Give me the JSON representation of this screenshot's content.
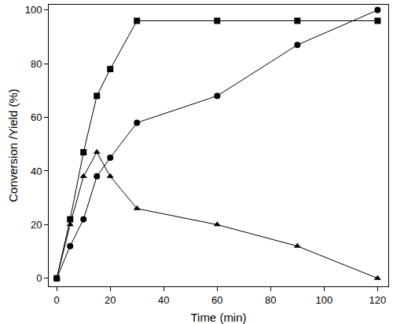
{
  "chart_data": {
    "type": "line",
    "x_label": "Time (min)",
    "y_label": "Conversion /Yield (%)",
    "x": [
      0,
      5,
      10,
      15,
      20,
      30,
      60,
      90,
      120
    ],
    "series": [
      {
        "color": "#000000",
        "marker": "square",
        "values": [
          0,
          22,
          47,
          68,
          78,
          96,
          96,
          96,
          96
        ]
      },
      {
        "color": "#000000",
        "marker": "circle",
        "values": [
          0,
          12,
          22,
          38,
          45,
          58,
          68,
          87,
          100
        ]
      },
      {
        "color": "#000000",
        "marker": "triangle",
        "values": [
          0,
          20,
          38,
          47,
          38,
          26,
          20,
          12,
          0
        ]
      }
    ],
    "xlim": [
      -3,
      124
    ],
    "ylim": [
      -3,
      102
    ],
    "xticks": [
      0,
      20,
      40,
      60,
      80,
      100,
      120
    ],
    "yticks": [
      0,
      20,
      40,
      60,
      80,
      100
    ],
    "grid": false
  }
}
